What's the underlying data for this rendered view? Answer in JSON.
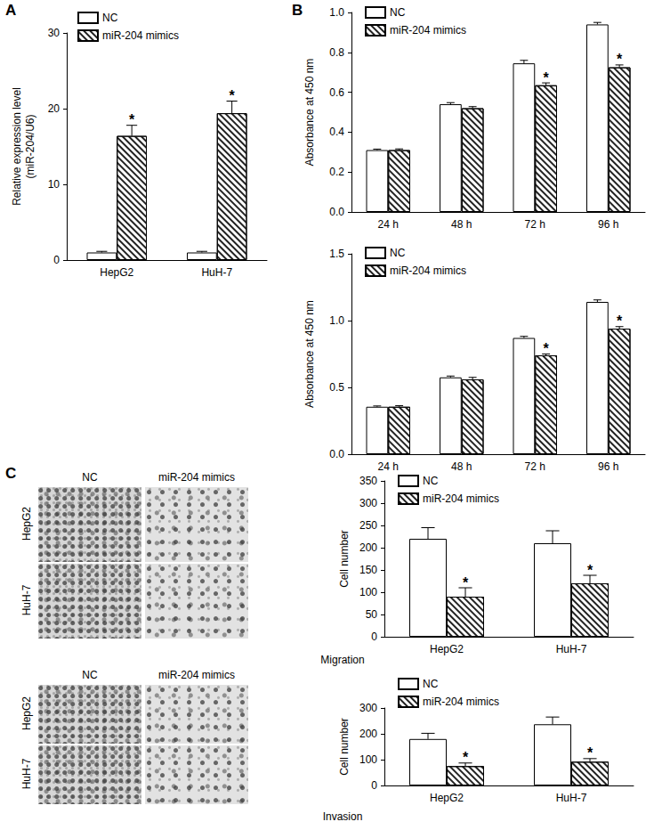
{
  "chart_data": [
    {
      "panel": "A",
      "type": "bar",
      "categories": [
        "HepG2",
        "HuH-7"
      ],
      "y_label": "Relative expression level\n(miR-204/U6)",
      "ylim": [
        0,
        30
      ],
      "yticks": [
        0,
        10,
        20,
        30
      ],
      "grid": false,
      "legend": "upper left",
      "series": [
        {
          "name": "NC",
          "color": "#ffffff",
          "values": [
            1.0,
            1.0
          ],
          "errors": [
            0.15,
            0.15
          ],
          "significance": [
            null,
            null
          ]
        },
        {
          "name": "miR-204 mimics",
          "color": "#ffffff",
          "values": [
            16.4,
            19.4
          ],
          "errors": [
            1.4,
            1.6
          ],
          "significance": [
            "*",
            "*"
          ]
        }
      ]
    },
    {
      "panel": "B",
      "type": "bar",
      "categories": [
        "24 h",
        "48 h",
        "72 h",
        "96 h"
      ],
      "y_label": "Absorbance at 450 nm",
      "ylim": [
        0,
        1.0
      ],
      "yticks": [
        {
          "value": 0,
          "label": "0.0"
        },
        0.2,
        0.4,
        0.6,
        0.8,
        {
          "value": 1.0,
          "label": "1.0"
        }
      ],
      "grid": false,
      "legend": "upper left",
      "series": [
        {
          "name": "NC",
          "color": "#ffffff",
          "values": [
            0.31,
            0.54,
            0.745,
            0.94
          ],
          "errors": [
            0.005,
            0.008,
            0.015,
            0.01
          ],
          "significance": [
            null,
            null,
            null,
            null
          ]
        },
        {
          "name": "miR-204 mimics",
          "color": "#ffffff",
          "values": [
            0.31,
            0.52,
            0.635,
            0.725
          ],
          "errors": [
            0.006,
            0.008,
            0.012,
            0.012
          ],
          "significance": [
            null,
            null,
            "*",
            "*"
          ]
        }
      ]
    },
    {
      "type": "bar",
      "categories": [
        "24 h",
        "48 h",
        "72 h",
        "96 h"
      ],
      "y_label": "Absorbance at 450 nm",
      "ylim": [
        0,
        1.5
      ],
      "yticks": [
        {
          "value": 0,
          "label": "0.0"
        },
        0.5,
        {
          "value": 1.0,
          "label": "1.0"
        },
        1.5
      ],
      "grid": false,
      "legend": "upper left",
      "series": [
        {
          "name": "NC",
          "color": "#ffffff",
          "values": [
            0.355,
            0.575,
            0.87,
            1.14
          ],
          "errors": [
            0.006,
            0.01,
            0.012,
            0.015
          ],
          "significance": [
            null,
            null,
            null,
            null
          ]
        },
        {
          "name": "miR-204 mimics",
          "color": "#ffffff",
          "values": [
            0.355,
            0.56,
            0.74,
            0.94
          ],
          "errors": [
            0.008,
            0.015,
            0.01,
            0.015
          ],
          "significance": [
            null,
            null,
            "*",
            "*"
          ]
        }
      ]
    },
    {
      "type": "bar",
      "categories": [
        "HepG2",
        "HuH-7"
      ],
      "y_label": "Cell number",
      "ylim": [
        0,
        350
      ],
      "yticks": [
        0,
        50,
        100,
        150,
        200,
        250,
        300,
        350
      ],
      "grid": false,
      "legend": "upper left",
      "series": [
        {
          "name": "NC",
          "color": "#ffffff",
          "values": [
            220,
            210
          ],
          "errors": [
            25,
            28
          ],
          "significance": [
            null,
            null
          ]
        },
        {
          "name": "miR-204 mimics",
          "color": "#ffffff",
          "values": [
            90,
            120
          ],
          "errors": [
            20,
            18
          ],
          "significance": [
            "*",
            "*"
          ]
        }
      ]
    },
    {
      "type": "bar",
      "categories": [
        "HepG2",
        "HuH-7"
      ],
      "y_label": "Cell number",
      "ylim": [
        0,
        300
      ],
      "yticks": [
        0,
        100,
        200,
        300
      ],
      "grid": false,
      "legend": "upper left",
      "series": [
        {
          "name": "NC",
          "color": "#ffffff",
          "values": [
            180,
            237
          ],
          "errors": [
            22,
            28
          ],
          "significance": [
            null,
            null
          ]
        },
        {
          "name": "miR-204 mimics",
          "color": "#ffffff",
          "values": [
            75,
            92
          ],
          "errors": [
            12,
            12
          ],
          "significance": [
            "*",
            "*"
          ]
        }
      ]
    }
  ],
  "image_panels": [
    {
      "panel": "C",
      "columns": [
        "NC",
        "miR-204 mimics"
      ],
      "rows": [
        "HepG2",
        "HuH-7"
      ],
      "caption": "Migration"
    },
    {
      "columns": [
        "NC",
        "miR-204 mimics"
      ],
      "rows": [
        "HepG2",
        "HuH-7"
      ],
      "caption": "Invasion"
    }
  ]
}
